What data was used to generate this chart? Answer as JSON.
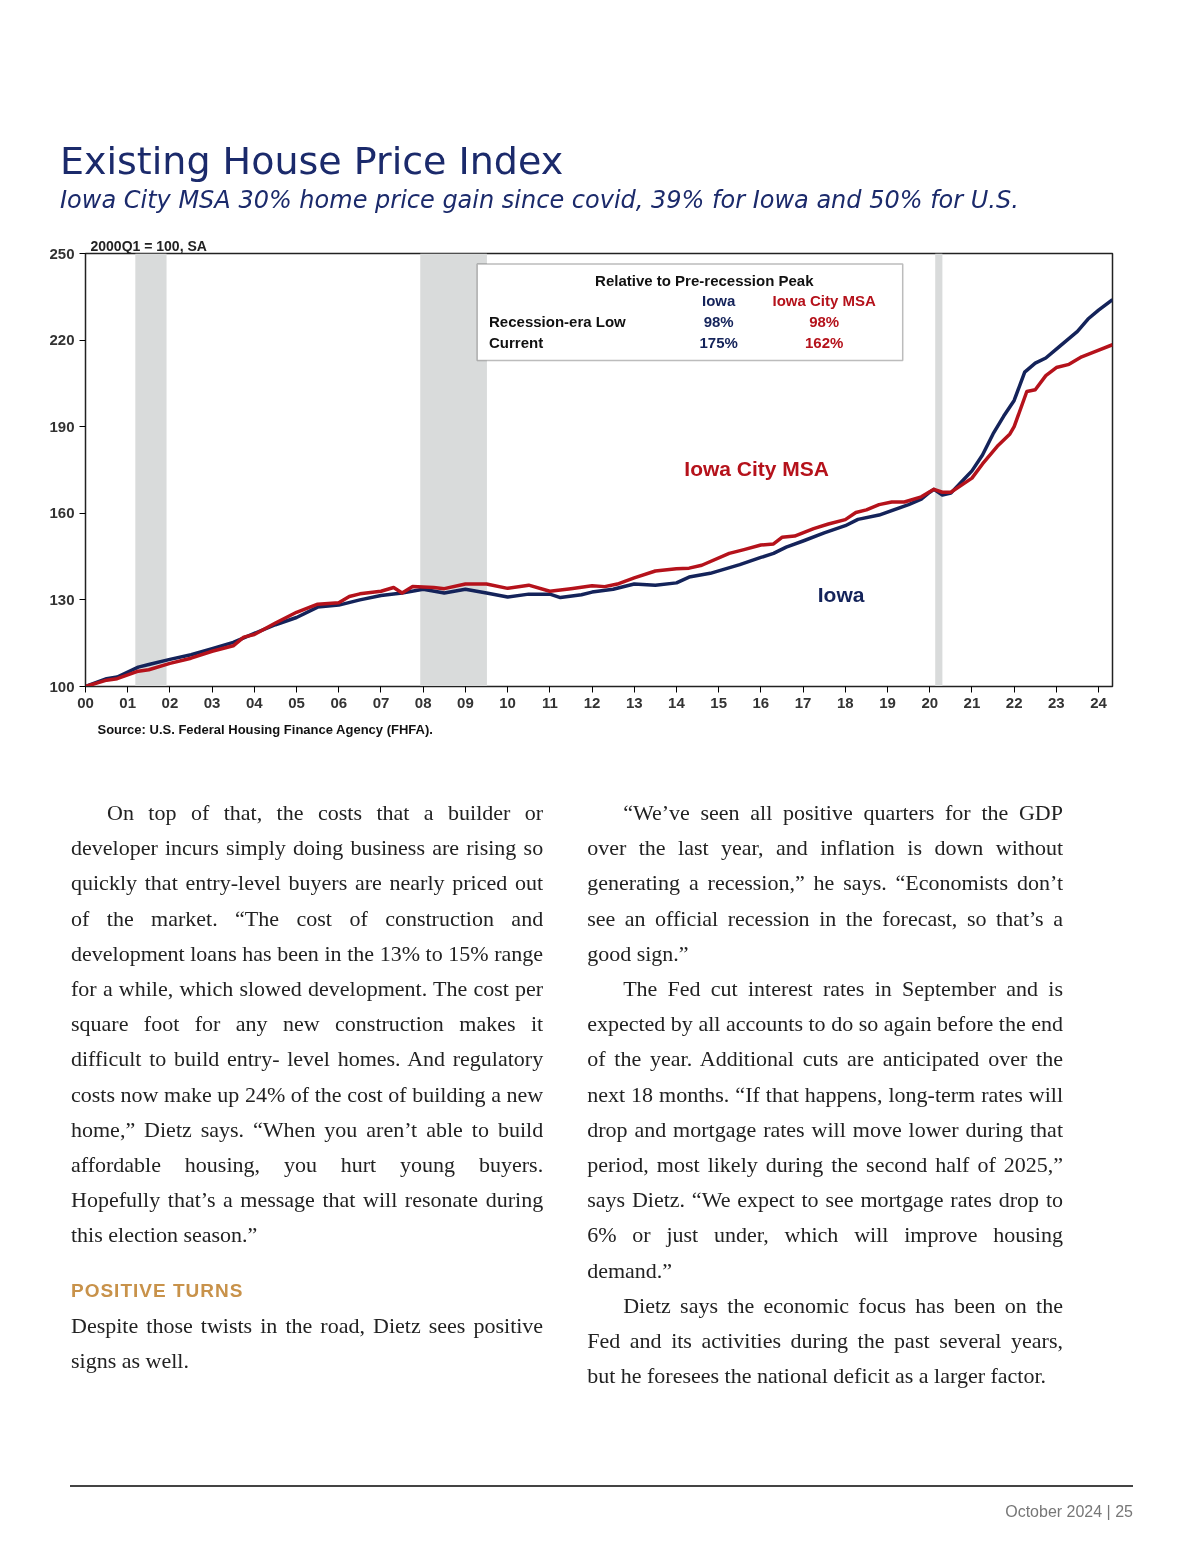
{
  "chart_data": {
    "type": "line",
    "title": "Existing House Price Index",
    "subtitle": "Iowa City MSA 30% home price gain since covid, 39% for Iowa and 50% for U.S.",
    "annotations": [
      "2000Q1 = 100, SA",
      "Relative to Pre-recession Peak",
      "Recession-era Low",
      "Current",
      "Iowa",
      "Iowa City MSA",
      "98%",
      "98%",
      "175%",
      "162%",
      "Source: U.S. Federal Housing Finance Agency (FHFA).",
      "On top of that, the costs that a builder or developer incurs simply doing business are rising so quickly that entry-level buyers are nearly priced out of the market. “The cost of construction and development loans has been in the 13% to 15% range for a while, which slowed development. The cost per square foot for any new construction makes it difficult to build entry- level homes. And regulatory costs now make up 24% of the cost of building a new home,” Dietz says. “When you aren’t able to build affordable housing, you hurt young buyers. Hopefully that’s a message that will resonate during this election season.”",
      "POSITIVE TURNS",
      "Despite those twists in the road, Dietz sees positive signs as well.",
      "“We’ve seen all positive quarters for the GDP over the last year, and inflation is down without generating a recession,” he says. “Economists don’t see an official recession in the forecast, so that’s a good sign.”",
      "The Fed cut interest rates in September and is expected by all accounts to do so again before the end of the year. Additional cuts are anticipated over the next 18 months. “If that happens, long-term rates will drop and mortgage rates will move lower during that period, most likely during the second half of 2025,” says Dietz. “We expect to see mortgage rates drop to 6% or just under, which will improve housing demand.”",
      "Dietz says the economic focus has been on the Fed and its activities during the past several years, but he foresees the national deficit as a larger factor.",
      "October 2024 | 25"
    ],
    "series": [
      {
        "name": "Iowa",
        "color": "#14235a",
        "x": [
          2000,
          2000.5,
          2000.75,
          2001.25,
          2001.5,
          2002,
          2002.5,
          2003,
          2003.5,
          2004,
          2004.5,
          2005,
          2005.5,
          2006,
          2006.5,
          2007,
          2007.5,
          2008,
          2008.5,
          2009,
          2009.5,
          2010,
          2010.5,
          2011,
          2011.25,
          2011.75,
          2012,
          2012.5,
          2013,
          2013.5,
          2014,
          2014.3,
          2014.8,
          2015.5,
          2016,
          2016.3,
          2016.6,
          2017,
          2017.5,
          2018,
          2018.3,
          2018.8,
          2019.5,
          2019.8,
          2020,
          2020.1,
          2020.3,
          2020.5,
          2020.8,
          2021,
          2021.25,
          2021.5,
          2021.75,
          2022,
          2022.25,
          2022.5,
          2022.75,
          2023,
          2023.5,
          2023.75,
          2024,
          2024.33
        ],
        "values": [
          100,
          102.7,
          103.3,
          106.7,
          107.6,
          109.4,
          111,
          113.1,
          115.3,
          118.4,
          121.4,
          123.9,
          127.5,
          128.2,
          130,
          131.5,
          132.4,
          133.7,
          132.4,
          133.7,
          132.4,
          131,
          132,
          132,
          130.8,
          131.8,
          132.7,
          133.7,
          135.5,
          135.1,
          135.9,
          137.9,
          139.2,
          142.2,
          144.7,
          146.1,
          148.3,
          150.4,
          153.2,
          155.7,
          157.9,
          159.4,
          163,
          164.9,
          167.3,
          168.3,
          166.3,
          167,
          171.6,
          174.7,
          180.2,
          187.5,
          193.6,
          199.1,
          208.9,
          212,
          213.8,
          216.9,
          223,
          227.3,
          230.4,
          234
        ]
      },
      {
        "name": "Iowa City MSA",
        "color": "#b5121b",
        "x": [
          2000,
          2000.5,
          2000.75,
          2001.25,
          2001.5,
          2002,
          2002.5,
          2003,
          2003.5,
          2003.75,
          2004,
          2004.5,
          2005,
          2005.5,
          2006,
          2006.25,
          2006.5,
          2007,
          2007.3,
          2007.5,
          2007.75,
          2008.25,
          2008.5,
          2009,
          2009.5,
          2010,
          2010.5,
          2011,
          2011.5,
          2012,
          2012.3,
          2012.6,
          2013,
          2013.5,
          2014,
          2014.3,
          2014.6,
          2015.25,
          2015.6,
          2016,
          2016.3,
          2016.5,
          2016.8,
          2017.25,
          2017.6,
          2018,
          2018.25,
          2018.5,
          2018.8,
          2019.1,
          2019.4,
          2019.8,
          2020.1,
          2020.3,
          2020.5,
          2021,
          2021.25,
          2021.6,
          2021.9,
          2022,
          2022.3,
          2022.5,
          2022.75,
          2023,
          2023.3,
          2023.6,
          2023.9,
          2024.33
        ],
        "values": [
          100,
          102.2,
          102.7,
          105.3,
          105.8,
          108,
          109.8,
          112.2,
          114.1,
          117.1,
          118,
          122,
          125.7,
          128.5,
          129,
          131.2,
          132.1,
          133,
          134.3,
          132.4,
          134.6,
          134.3,
          133.9,
          135.5,
          135.5,
          134,
          135.1,
          133,
          133.9,
          134.9,
          134.6,
          135.5,
          137.6,
          140,
          140.8,
          141,
          142,
          146.1,
          147.4,
          149,
          149.4,
          151.7,
          152.1,
          154.7,
          156.3,
          157.8,
          160.3,
          161.2,
          163,
          163.9,
          163.9,
          165.7,
          168.3,
          167.3,
          167.3,
          172.2,
          177.1,
          183.2,
          187.5,
          190,
          202.2,
          202.8,
          207.7,
          210.5,
          211.6,
          214.2,
          215.9,
          218.4
        ]
      }
    ],
    "xlim": [
      2000,
      2024.33
    ],
    "xticks": [
      {
        "value": 2000,
        "label": "00"
      },
      {
        "value": 2001,
        "label": "01"
      },
      {
        "value": 2002,
        "label": "02"
      },
      {
        "value": 2003,
        "label": "03"
      },
      {
        "value": 2004,
        "label": "04"
      },
      {
        "value": 2005,
        "label": "05"
      },
      {
        "value": 2006,
        "label": "06"
      },
      {
        "value": 2007,
        "label": "07"
      },
      {
        "value": 2008,
        "label": "08"
      },
      {
        "value": 2009,
        "label": "09"
      },
      {
        "value": 2010,
        "label": "10"
      },
      {
        "value": 2011,
        "label": "11"
      },
      {
        "value": 2012,
        "label": "12"
      },
      {
        "value": 2013,
        "label": "13"
      },
      {
        "value": 2014,
        "label": "14"
      },
      {
        "value": 2015,
        "label": "15"
      },
      {
        "value": 2016,
        "label": "16"
      },
      {
        "value": 2017,
        "label": "17"
      },
      {
        "value": 2018,
        "label": "18"
      },
      {
        "value": 2019,
        "label": "19"
      },
      {
        "value": 2020,
        "label": "20"
      },
      {
        "value": 2021,
        "label": "21"
      },
      {
        "value": 2022,
        "label": "22"
      },
      {
        "value": 2023,
        "label": "23"
      },
      {
        "value": 2024,
        "label": "24"
      }
    ],
    "ylim": [
      100,
      250
    ],
    "yticks": [
      100,
      130,
      160,
      190,
      220,
      250
    ],
    "bands": [
      {
        "axis": "x",
        "from": 2001.18,
        "to": 2001.92,
        "color": "#d9dbdb"
      },
      {
        "axis": "x",
        "from": 2007.93,
        "to": 2009.51,
        "color": "#d9dbdb"
      },
      {
        "axis": "x",
        "from": 2020.13,
        "to": 2020.3,
        "color": "#d9dbdb"
      }
    ],
    "grid": false,
    "line_style": "solid"
  }
}
